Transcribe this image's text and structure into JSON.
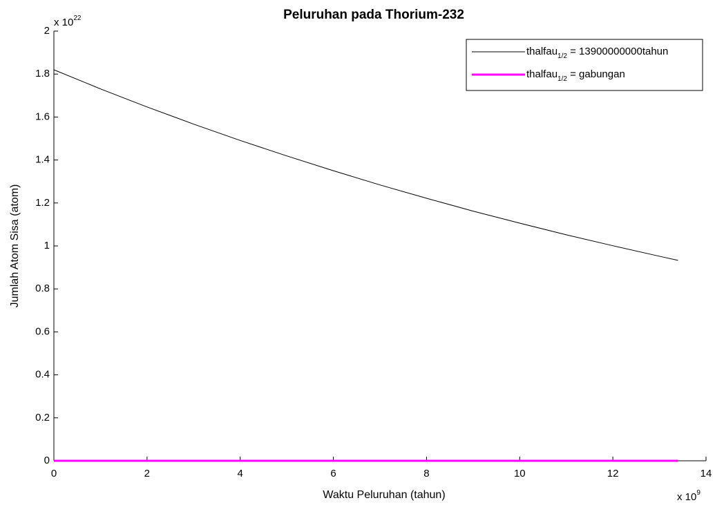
{
  "chart_data": {
    "type": "line",
    "title": "Peluruhan pada Thorium-232",
    "xlabel": "Waktu Peluruhan (tahun)",
    "ylabel": "Jumlah Atom Sisa (atom)",
    "x_multiplier": {
      "base": "x 10",
      "exponent": "9"
    },
    "y_multiplier": {
      "base": "x 10",
      "exponent": "22"
    },
    "x": [
      0,
      1,
      2,
      3,
      4,
      5,
      6,
      7,
      8,
      9,
      10,
      11,
      12,
      13,
      13.4
    ],
    "series": [
      {
        "name_parts": [
          "thalfau",
          "1/2",
          " = 13900000000tahun"
        ],
        "color": "#000000",
        "values": [
          1.82,
          1.731,
          1.647,
          1.567,
          1.491,
          1.419,
          1.35,
          1.284,
          1.222,
          1.162,
          1.106,
          1.052,
          1.001,
          0.952,
          0.933
        ]
      },
      {
        "name_parts": [
          "thalfau",
          "1/2",
          " = gabungan"
        ],
        "color": "#ff00ff",
        "values": [
          0,
          0,
          0,
          0,
          0,
          0,
          0,
          0,
          0,
          0,
          0,
          0,
          0,
          0,
          0
        ]
      }
    ],
    "xlim": [
      0,
      14
    ],
    "ylim": [
      0,
      2
    ],
    "xticks": [
      0,
      2,
      4,
      6,
      8,
      10,
      12,
      14
    ],
    "yticks": [
      0,
      0.2,
      0.4,
      0.6,
      0.8,
      1,
      1.2,
      1.4,
      1.6,
      1.8,
      2
    ],
    "legend": "upper right",
    "grid": false
  }
}
